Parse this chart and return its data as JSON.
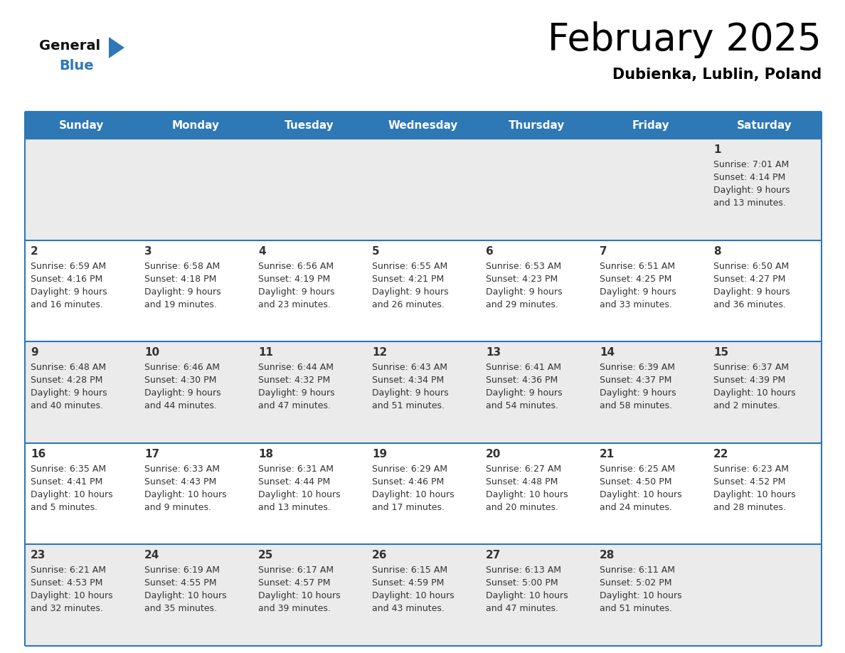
{
  "title": "February 2025",
  "subtitle": "Dubienka, Lublin, Poland",
  "days_of_week": [
    "Sunday",
    "Monday",
    "Tuesday",
    "Wednesday",
    "Thursday",
    "Friday",
    "Saturday"
  ],
  "header_bg": "#2E78B5",
  "header_text": "#FFFFFF",
  "row_bg": [
    "#EBEBEB",
    "#FFFFFF",
    "#EBEBEB",
    "#FFFFFF",
    "#EBEBEB"
  ],
  "separator_color": "#2E78B5",
  "day_number_color": "#333333",
  "info_text_color": "#333333",
  "logo_general_color": "#111111",
  "logo_blue_color": "#2E78B5",
  "weeks": [
    [
      null,
      null,
      null,
      null,
      null,
      null,
      1
    ],
    [
      2,
      3,
      4,
      5,
      6,
      7,
      8
    ],
    [
      9,
      10,
      11,
      12,
      13,
      14,
      15
    ],
    [
      16,
      17,
      18,
      19,
      20,
      21,
      22
    ],
    [
      23,
      24,
      25,
      26,
      27,
      28,
      null
    ]
  ],
  "sun_data": {
    "1": {
      "rise": "7:01 AM",
      "set": "4:14 PM",
      "day_line1": "Daylight: 9 hours",
      "day_line2": "and 13 minutes."
    },
    "2": {
      "rise": "6:59 AM",
      "set": "4:16 PM",
      "day_line1": "Daylight: 9 hours",
      "day_line2": "and 16 minutes."
    },
    "3": {
      "rise": "6:58 AM",
      "set": "4:18 PM",
      "day_line1": "Daylight: 9 hours",
      "day_line2": "and 19 minutes."
    },
    "4": {
      "rise": "6:56 AM",
      "set": "4:19 PM",
      "day_line1": "Daylight: 9 hours",
      "day_line2": "and 23 minutes."
    },
    "5": {
      "rise": "6:55 AM",
      "set": "4:21 PM",
      "day_line1": "Daylight: 9 hours",
      "day_line2": "and 26 minutes."
    },
    "6": {
      "rise": "6:53 AM",
      "set": "4:23 PM",
      "day_line1": "Daylight: 9 hours",
      "day_line2": "and 29 minutes."
    },
    "7": {
      "rise": "6:51 AM",
      "set": "4:25 PM",
      "day_line1": "Daylight: 9 hours",
      "day_line2": "and 33 minutes."
    },
    "8": {
      "rise": "6:50 AM",
      "set": "4:27 PM",
      "day_line1": "Daylight: 9 hours",
      "day_line2": "and 36 minutes."
    },
    "9": {
      "rise": "6:48 AM",
      "set": "4:28 PM",
      "day_line1": "Daylight: 9 hours",
      "day_line2": "and 40 minutes."
    },
    "10": {
      "rise": "6:46 AM",
      "set": "4:30 PM",
      "day_line1": "Daylight: 9 hours",
      "day_line2": "and 44 minutes."
    },
    "11": {
      "rise": "6:44 AM",
      "set": "4:32 PM",
      "day_line1": "Daylight: 9 hours",
      "day_line2": "and 47 minutes."
    },
    "12": {
      "rise": "6:43 AM",
      "set": "4:34 PM",
      "day_line1": "Daylight: 9 hours",
      "day_line2": "and 51 minutes."
    },
    "13": {
      "rise": "6:41 AM",
      "set": "4:36 PM",
      "day_line1": "Daylight: 9 hours",
      "day_line2": "and 54 minutes."
    },
    "14": {
      "rise": "6:39 AM",
      "set": "4:37 PM",
      "day_line1": "Daylight: 9 hours",
      "day_line2": "and 58 minutes."
    },
    "15": {
      "rise": "6:37 AM",
      "set": "4:39 PM",
      "day_line1": "Daylight: 10 hours",
      "day_line2": "and 2 minutes."
    },
    "16": {
      "rise": "6:35 AM",
      "set": "4:41 PM",
      "day_line1": "Daylight: 10 hours",
      "day_line2": "and 5 minutes."
    },
    "17": {
      "rise": "6:33 AM",
      "set": "4:43 PM",
      "day_line1": "Daylight: 10 hours",
      "day_line2": "and 9 minutes."
    },
    "18": {
      "rise": "6:31 AM",
      "set": "4:44 PM",
      "day_line1": "Daylight: 10 hours",
      "day_line2": "and 13 minutes."
    },
    "19": {
      "rise": "6:29 AM",
      "set": "4:46 PM",
      "day_line1": "Daylight: 10 hours",
      "day_line2": "and 17 minutes."
    },
    "20": {
      "rise": "6:27 AM",
      "set": "4:48 PM",
      "day_line1": "Daylight: 10 hours",
      "day_line2": "and 20 minutes."
    },
    "21": {
      "rise": "6:25 AM",
      "set": "4:50 PM",
      "day_line1": "Daylight: 10 hours",
      "day_line2": "and 24 minutes."
    },
    "22": {
      "rise": "6:23 AM",
      "set": "4:52 PM",
      "day_line1": "Daylight: 10 hours",
      "day_line2": "and 28 minutes."
    },
    "23": {
      "rise": "6:21 AM",
      "set": "4:53 PM",
      "day_line1": "Daylight: 10 hours",
      "day_line2": "and 32 minutes."
    },
    "24": {
      "rise": "6:19 AM",
      "set": "4:55 PM",
      "day_line1": "Daylight: 10 hours",
      "day_line2": "and 35 minutes."
    },
    "25": {
      "rise": "6:17 AM",
      "set": "4:57 PM",
      "day_line1": "Daylight: 10 hours",
      "day_line2": "and 39 minutes."
    },
    "26": {
      "rise": "6:15 AM",
      "set": "4:59 PM",
      "day_line1": "Daylight: 10 hours",
      "day_line2": "and 43 minutes."
    },
    "27": {
      "rise": "6:13 AM",
      "set": "5:00 PM",
      "day_line1": "Daylight: 10 hours",
      "day_line2": "and 47 minutes."
    },
    "28": {
      "rise": "6:11 AM",
      "set": "5:02 PM",
      "day_line1": "Daylight: 10 hours",
      "day_line2": "and 51 minutes."
    }
  }
}
